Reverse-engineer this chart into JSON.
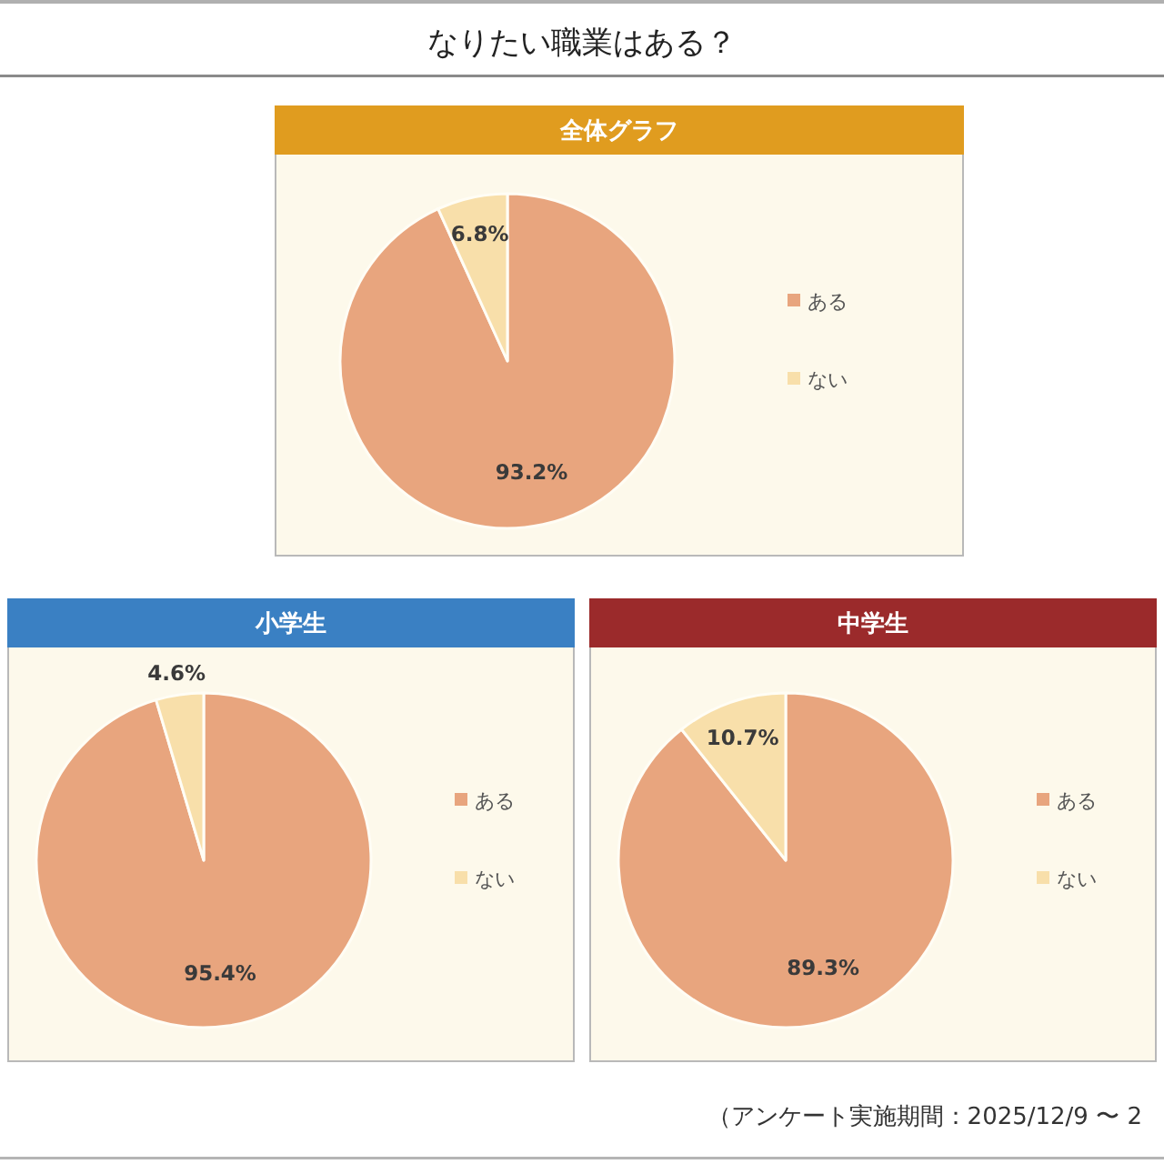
{
  "chart_data": [
    {
      "type": "other",
      "title": "なりたい職業はある？"
    },
    {
      "type": "pie",
      "title": "全体グラフ",
      "categories": [
        "ある",
        "ない"
      ],
      "values": [
        93.2,
        6.8
      ],
      "colors": [
        "#e8a57e",
        "#f8dfaa"
      ],
      "value_labels": [
        "93.2%",
        "6.8%"
      ],
      "legend": "right"
    },
    {
      "type": "pie",
      "title": "小学生",
      "categories": [
        "ある",
        "ない"
      ],
      "values": [
        95.4,
        4.6
      ],
      "colors": [
        "#e8a57e",
        "#f8dfaa"
      ],
      "value_labels": [
        "95.4%",
        "4.6%"
      ],
      "legend": "right"
    },
    {
      "type": "pie",
      "title": "中学生",
      "categories": [
        "ある",
        "ない"
      ],
      "values": [
        89.3,
        10.7
      ],
      "colors": [
        "#e8a57e",
        "#f8dfaa"
      ],
      "value_labels": [
        "89.3%",
        "10.7%"
      ],
      "legend": "right"
    },
    {
      "type": "other",
      "annotations": [
        "（アンケート実施期間：2025/12/9 〜 2"
      ]
    }
  ]
}
